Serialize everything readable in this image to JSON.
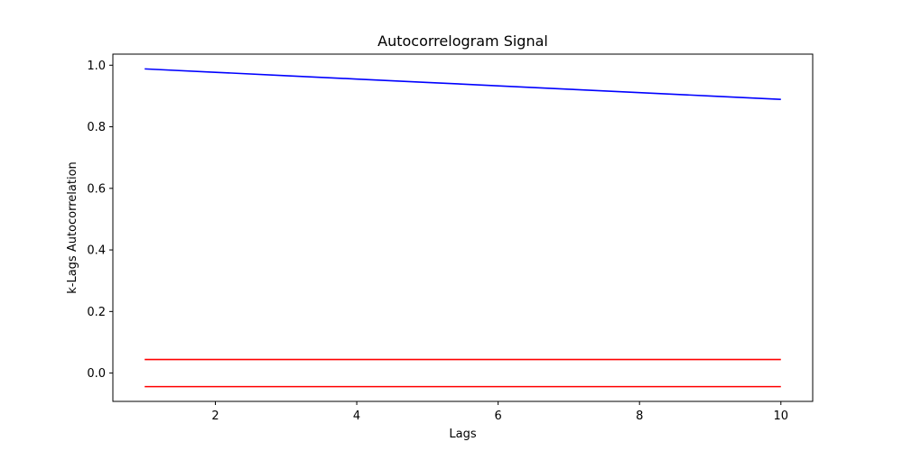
{
  "chart_data": {
    "type": "line",
    "title": "Autocorrelogram Signal",
    "xlabel": "Lags",
    "ylabel": "k-Lags Autocorrelation",
    "xlim": [
      0.55,
      10.45
    ],
    "ylim": [
      -0.092,
      1.036
    ],
    "x_ticks": [
      2,
      4,
      6,
      8,
      10
    ],
    "x_tick_labels": [
      "2",
      "4",
      "6",
      "8",
      "10"
    ],
    "y_ticks": [
      0.0,
      0.2,
      0.4,
      0.6,
      0.8,
      1.0
    ],
    "y_tick_labels": [
      "0.0",
      "0.2",
      "0.4",
      "0.6",
      "0.8",
      "1.0"
    ],
    "grid": false,
    "series": [
      {
        "color": "#0000ff",
        "x": [
          1,
          2,
          3,
          4,
          5,
          6,
          7,
          8,
          9,
          10
        ],
        "values": [
          0.988,
          0.977,
          0.966,
          0.955,
          0.944,
          0.933,
          0.922,
          0.911,
          0.9,
          0.889
        ]
      },
      {
        "color": "#ff0000",
        "x": [
          1,
          10
        ],
        "values": [
          0.044,
          0.044
        ]
      },
      {
        "color": "#ff0000",
        "x": [
          1,
          10
        ],
        "values": [
          -0.044,
          -0.044
        ]
      }
    ]
  }
}
